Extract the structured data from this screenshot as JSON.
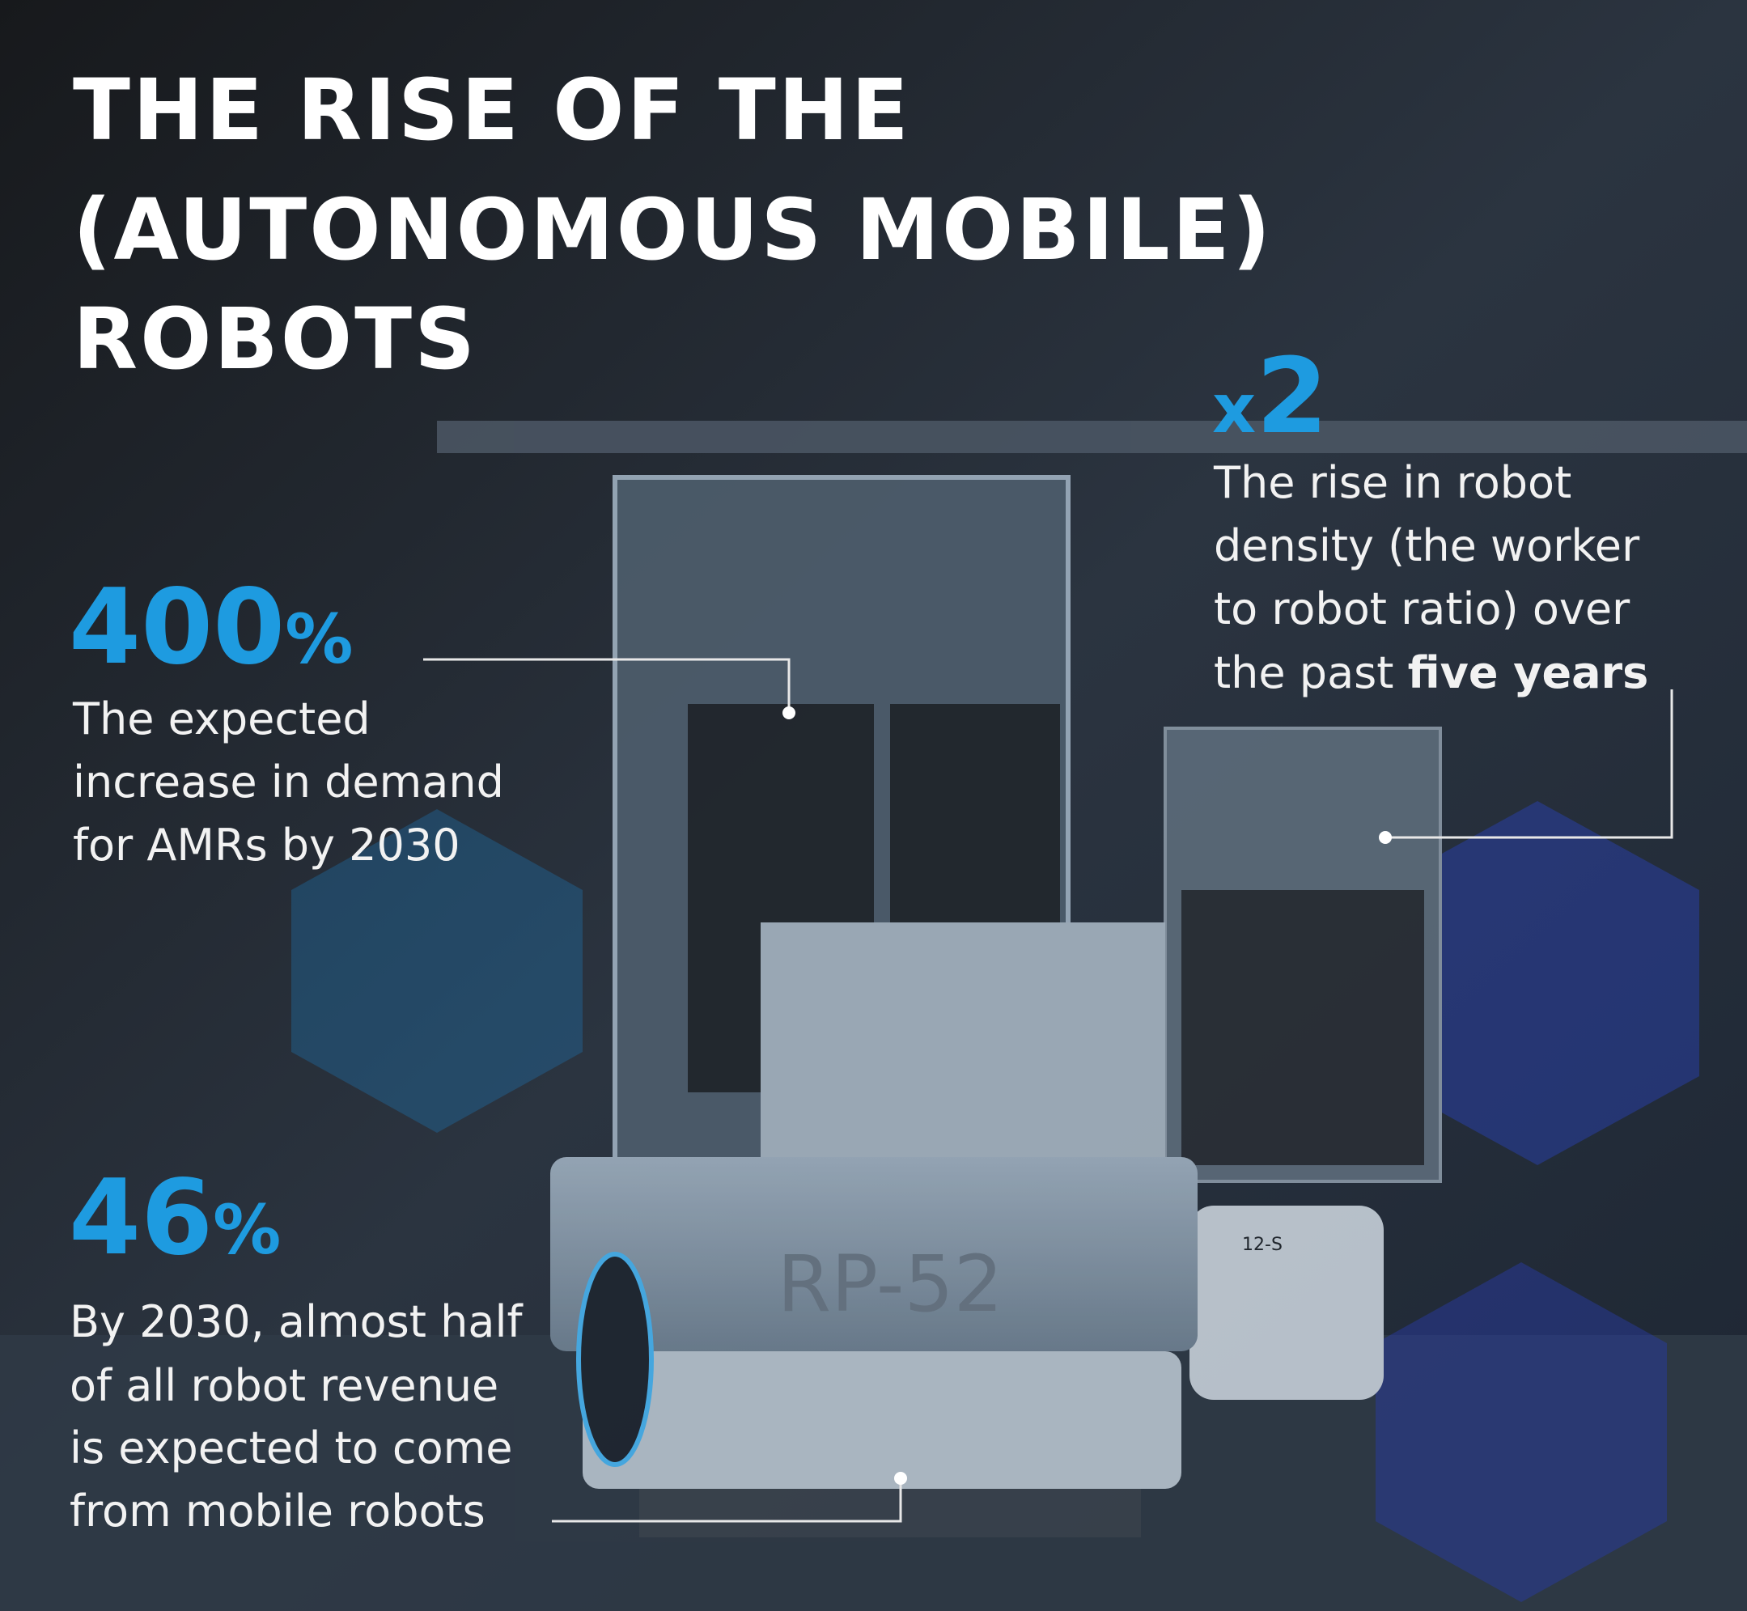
{
  "title": {
    "lines": [
      "THE RISE OF THE",
      "(AUTONOMOUS MOBILE)",
      "ROBOTS"
    ]
  },
  "stats": [
    {
      "figure": "400",
      "unit": "%",
      "lines": [
        "The expected",
        "increase in demand",
        "for AMRs by 2030"
      ]
    },
    {
      "prefix": "x",
      "figure": "2",
      "lines": [
        "The rise in robot",
        "density (the worker",
        "to robot ratio) over",
        "the past"
      ],
      "emphasis": "five years"
    },
    {
      "figure": "46",
      "unit": "%",
      "lines": [
        "By 2030, almost half",
        "of all robot revenue",
        "is expected to come",
        "from mobile robots"
      ]
    }
  ],
  "scene_labels": [
    "RP-52",
    "12-S"
  ]
}
